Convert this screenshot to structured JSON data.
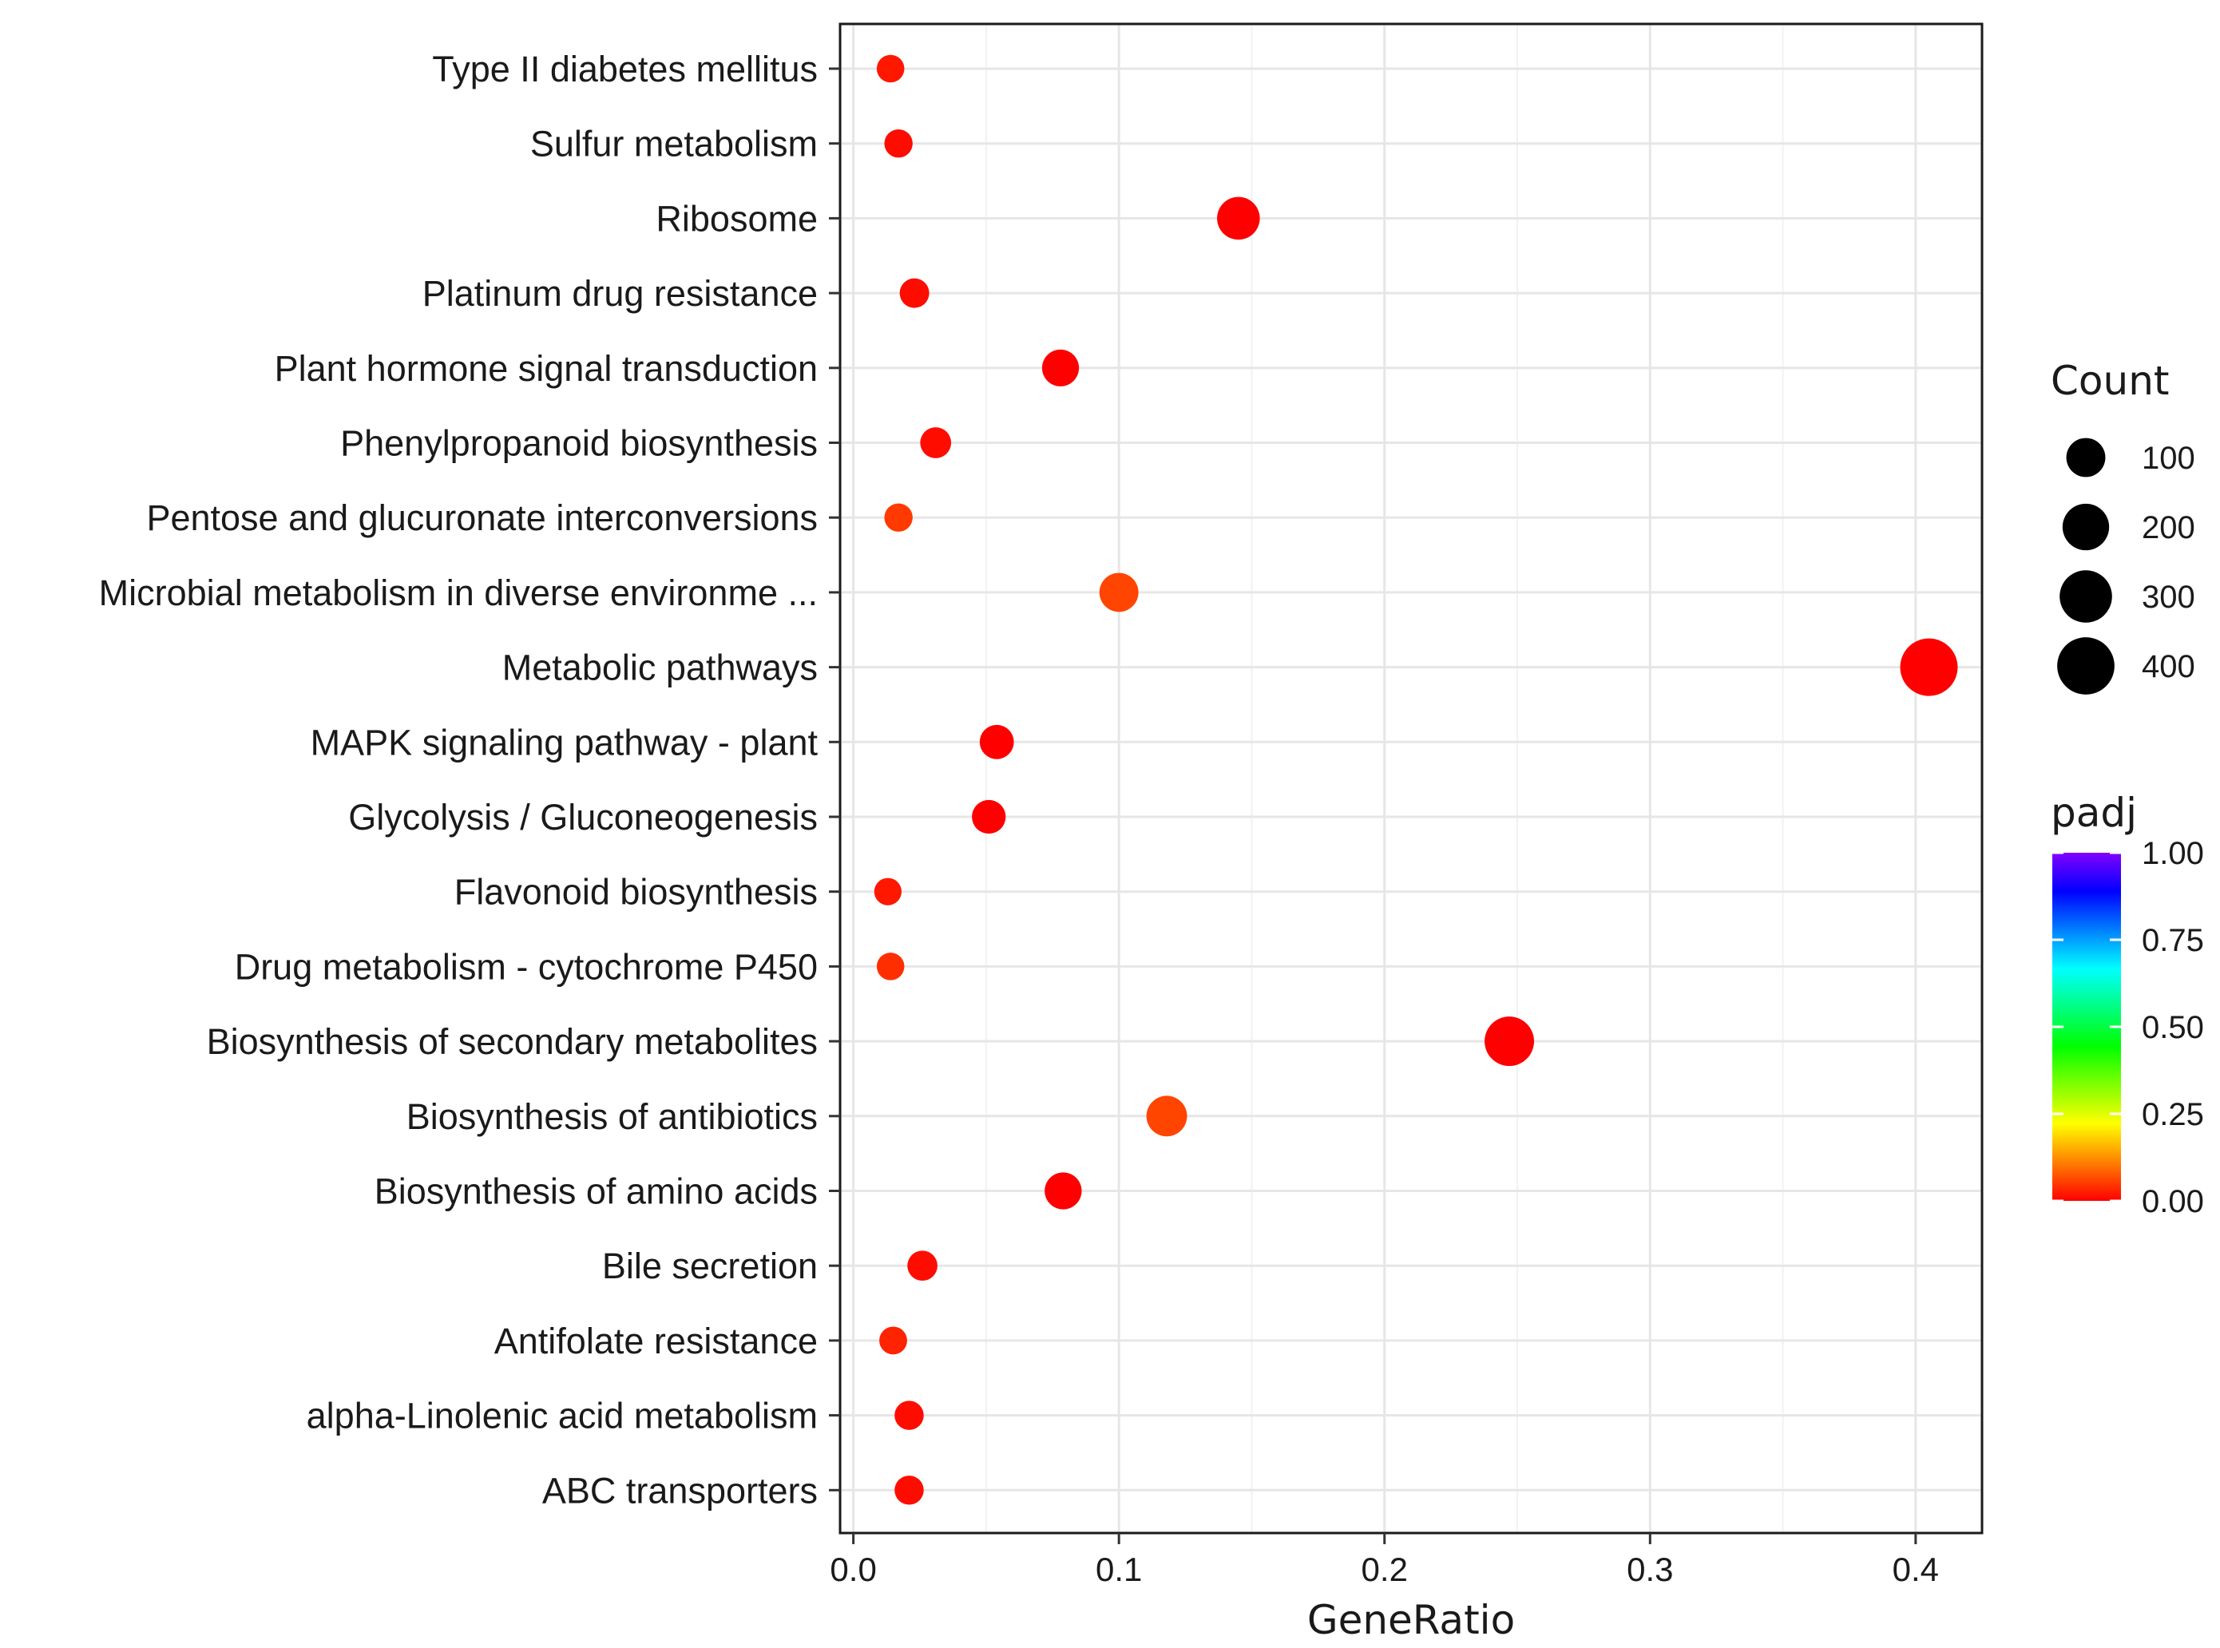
{
  "chart_data": {
    "type": "scatter",
    "xlabel": "GeneRatio",
    "ylabel": "",
    "xlim": [
      -0.005,
      0.425
    ],
    "xticks": [
      0.0,
      0.1,
      0.2,
      0.3,
      0.4
    ],
    "xtick_labels": [
      "0.0",
      "0.1",
      "0.2",
      "0.3",
      "0.4"
    ],
    "grid": true,
    "legend_position": "right",
    "categories": [
      "Type II diabetes mellitus",
      "Sulfur metabolism",
      "Ribosome",
      "Platinum drug resistance",
      "Plant hormone signal transduction",
      "Phenylpropanoid biosynthesis",
      "Pentose and glucuronate interconversions",
      "Microbial metabolism in diverse environme ...",
      "Metabolic pathways",
      "MAPK signaling pathway - plant",
      "Glycolysis / Gluconeogenesis",
      "Flavonoid biosynthesis",
      "Drug metabolism - cytochrome P450",
      "Biosynthesis of secondary metabolites",
      "Biosynthesis of antibiotics",
      "Biosynthesis of amino acids",
      "Bile secretion",
      "Antifolate resistance",
      "alpha-Linolenic acid metabolism",
      "ABC transporters"
    ],
    "points": [
      {
        "term": "Type II diabetes mellitus",
        "x": 0.014,
        "count": 14,
        "padj": 0.02
      },
      {
        "term": "Sulfur metabolism",
        "x": 0.017,
        "count": 17,
        "padj": 0.01
      },
      {
        "term": "Ribosome",
        "x": 0.145,
        "count": 145,
        "padj": 0.0
      },
      {
        "term": "Platinum drug resistance",
        "x": 0.023,
        "count": 23,
        "padj": 0.01
      },
      {
        "term": "Plant hormone signal transduction",
        "x": 0.078,
        "count": 78,
        "padj": 0.0
      },
      {
        "term": "Phenylpropanoid biosynthesis",
        "x": 0.031,
        "count": 31,
        "padj": 0.01
      },
      {
        "term": "Pentose and glucuronate interconversions",
        "x": 0.017,
        "count": 17,
        "padj": 0.05
      },
      {
        "term": "Microbial metabolism in diverse environme ...",
        "x": 0.1,
        "count": 100,
        "padj": 0.06
      },
      {
        "term": "Metabolic pathways",
        "x": 0.405,
        "count": 405,
        "padj": 0.0
      },
      {
        "term": "MAPK signaling pathway - plant",
        "x": 0.054,
        "count": 54,
        "padj": 0.0
      },
      {
        "term": "Glycolysis / Gluconeogenesis",
        "x": 0.051,
        "count": 51,
        "padj": 0.0
      },
      {
        "term": "Flavonoid biosynthesis",
        "x": 0.013,
        "count": 13,
        "padj": 0.02
      },
      {
        "term": "Drug metabolism - cytochrome P450",
        "x": 0.014,
        "count": 14,
        "padj": 0.04
      },
      {
        "term": "Biosynthesis of secondary metabolites",
        "x": 0.247,
        "count": 247,
        "padj": 0.0
      },
      {
        "term": "Biosynthesis of antibiotics",
        "x": 0.118,
        "count": 118,
        "padj": 0.06
      },
      {
        "term": "Biosynthesis of amino acids",
        "x": 0.079,
        "count": 79,
        "padj": 0.0
      },
      {
        "term": "Bile secretion",
        "x": 0.026,
        "count": 26,
        "padj": 0.01
      },
      {
        "term": "Antifolate resistance",
        "x": 0.015,
        "count": 15,
        "padj": 0.03
      },
      {
        "term": "alpha-Linolenic acid metabolism",
        "x": 0.021,
        "count": 21,
        "padj": 0.01
      },
      {
        "term": "ABC transporters",
        "x": 0.021,
        "count": 21,
        "padj": 0.01
      }
    ],
    "size_legend": {
      "title": "Count",
      "values": [
        100,
        200,
        300,
        400
      ],
      "labels": [
        "100",
        "200",
        "300",
        "400"
      ]
    },
    "color_legend": {
      "title": "padj",
      "range": [
        0.0,
        1.0
      ],
      "ticks": [
        0.0,
        0.25,
        0.5,
        0.75,
        1.0
      ],
      "tick_labels": [
        "0.00",
        "0.25",
        "0.50",
        "0.75",
        "1.00"
      ],
      "gradient_colors": [
        "#ff0000",
        "#ff8000",
        "#ffff00",
        "#80ff00",
        "#00ff00",
        "#00ff80",
        "#00ffff",
        "#0080ff",
        "#0000ff",
        "#8000ff"
      ]
    }
  }
}
